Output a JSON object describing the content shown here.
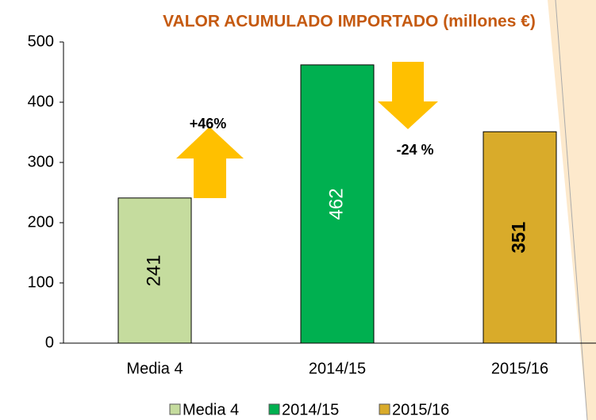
{
  "chart_data": {
    "type": "bar",
    "title": "VALOR ACUMULADO IMPORTADO (millones €)",
    "categories": [
      "Media 4",
      "2014/15",
      "2015/16"
    ],
    "values": [
      241,
      462,
      351
    ],
    "colors": [
      "#c5dc9e",
      "#00b050",
      "#d9ab2a"
    ],
    "ylim": [
      0,
      500
    ],
    "yticks": [
      0,
      100,
      200,
      300,
      400,
      500
    ],
    "legend": "bottom",
    "annotations": [
      "+46%",
      "-24 %"
    ]
  }
}
